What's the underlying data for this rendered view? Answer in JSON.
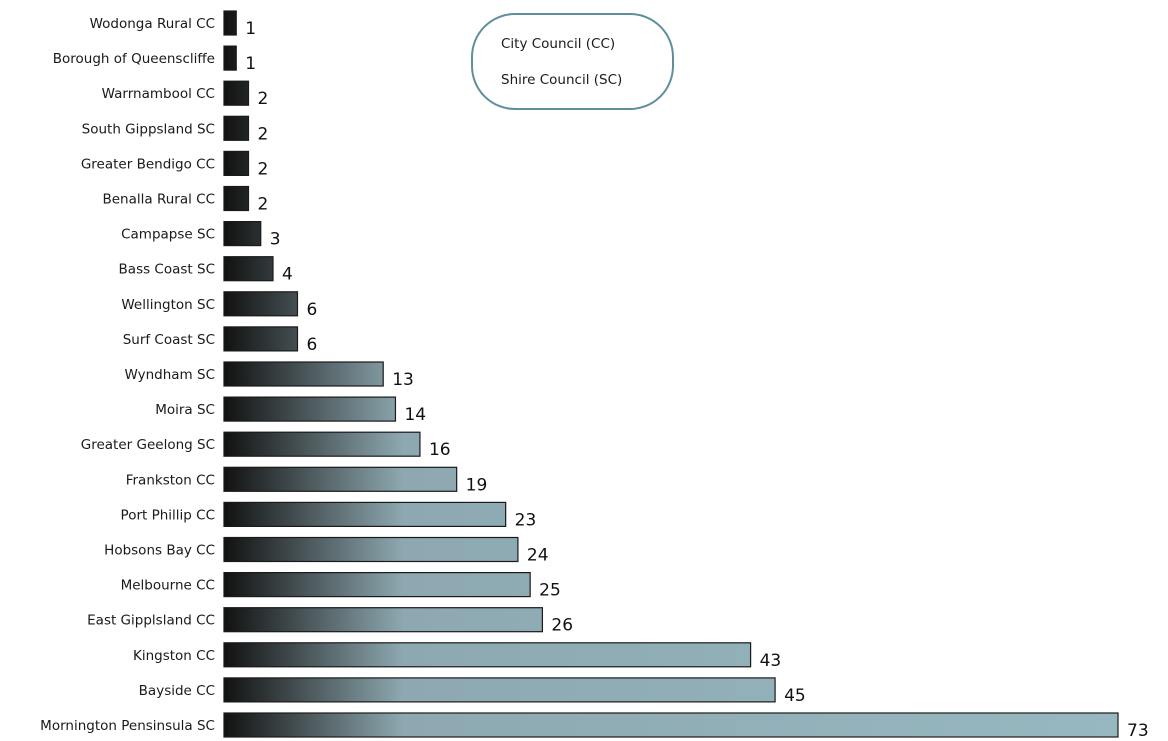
{
  "chart_data": {
    "type": "bar",
    "orientation": "horizontal",
    "categories": [
      "Wodonga Rural CC",
      "Borough of Queenscliffe",
      "Warrnambool CC",
      "South Gippsland SC",
      "Greater Bendigo CC",
      "Benalla Rural CC",
      "Campapse SC",
      "Bass Coast SC",
      "Wellington SC",
      "Surf Coast SC",
      "Wyndham SC",
      "Moira SC",
      "Greater Geelong SC",
      "Frankston CC",
      "Port Phillip CC",
      "Hobsons Bay CC",
      "Melbourne CC",
      "East Gipplsland CC",
      "Kingston CC",
      "Bayside CC",
      "Mornington  Pensinsula SC"
    ],
    "values": [
      1,
      1,
      2,
      2,
      2,
      2,
      3,
      4,
      6,
      6,
      13,
      14,
      16,
      19,
      23,
      24,
      25,
      26,
      43,
      45,
      73
    ],
    "legend": {
      "placement": "top-center",
      "entries": [
        "City Council (CC)",
        "Shire Council (SC)"
      ]
    },
    "colors": {
      "bar_light": "#97b8c1",
      "bar_dark": "#111111",
      "bar_outline": "#1a1a1a",
      "legend_border": "#5f8f9b"
    },
    "grid": false
  }
}
